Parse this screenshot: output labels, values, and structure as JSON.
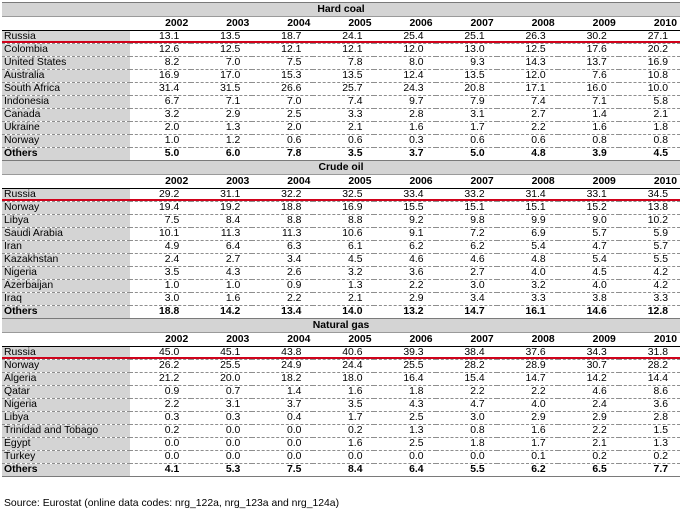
{
  "years": [
    "2002",
    "2003",
    "2004",
    "2005",
    "2006",
    "2007",
    "2008",
    "2009",
    "2010"
  ],
  "sections": [
    {
      "title": "Hard coal",
      "rows": [
        {
          "country": "Russia",
          "values": [
            "13.1",
            "13.5",
            "18.7",
            "24.1",
            "25.4",
            "25.1",
            "26.3",
            "30.2",
            "27.1"
          ]
        },
        {
          "country": "Colombia",
          "values": [
            "12.6",
            "12.5",
            "12.1",
            "12.1",
            "12.0",
            "13.0",
            "12.5",
            "17.6",
            "20.2"
          ]
        },
        {
          "country": "United States",
          "values": [
            "8.2",
            "7.0",
            "7.5",
            "7.8",
            "8.0",
            "9.3",
            "14.3",
            "13.7",
            "16.9"
          ]
        },
        {
          "country": "Australia",
          "values": [
            "16.9",
            "17.0",
            "15.3",
            "13.5",
            "12.4",
            "13.5",
            "12.0",
            "7.6",
            "10.8"
          ]
        },
        {
          "country": "South Africa",
          "values": [
            "31.4",
            "31.5",
            "26.6",
            "25.7",
            "24.3",
            "20.8",
            "17.1",
            "16.0",
            "10.0"
          ]
        },
        {
          "country": "Indonesia",
          "values": [
            "6.7",
            "7.1",
            "7.0",
            "7.4",
            "9.7",
            "7.9",
            "7.4",
            "7.1",
            "5.8"
          ]
        },
        {
          "country": "Canada",
          "values": [
            "3.2",
            "2.9",
            "2.5",
            "3.3",
            "2.8",
            "3.1",
            "2.7",
            "1.4",
            "2.1"
          ]
        },
        {
          "country": "Ukraine",
          "values": [
            "2.0",
            "1.3",
            "2.0",
            "2.1",
            "1.6",
            "1.7",
            "2.2",
            "1.6",
            "1.8"
          ]
        },
        {
          "country": "Norway",
          "values": [
            "1.0",
            "1.2",
            "0.6",
            "0.6",
            "0.3",
            "0.6",
            "0.6",
            "0.8",
            "0.8"
          ]
        },
        {
          "country": "Others",
          "values": [
            "5.0",
            "6.0",
            "7.8",
            "3.5",
            "3.7",
            "5.0",
            "4.8",
            "3.9",
            "4.5"
          ]
        }
      ]
    },
    {
      "title": "Crude oil",
      "rows": [
        {
          "country": "Russia",
          "values": [
            "29.2",
            "31.1",
            "32.2",
            "32.5",
            "33.4",
            "33.2",
            "31.4",
            "33.1",
            "34.5"
          ]
        },
        {
          "country": "Norway",
          "values": [
            "19.4",
            "19.2",
            "18.8",
            "16.9",
            "15.5",
            "15.1",
            "15.1",
            "15.2",
            "13.8"
          ]
        },
        {
          "country": "Libya",
          "values": [
            "7.5",
            "8.4",
            "8.8",
            "8.8",
            "9.2",
            "9.8",
            "9.9",
            "9.0",
            "10.2"
          ]
        },
        {
          "country": "Saudi Arabia",
          "values": [
            "10.1",
            "11.3",
            "11.3",
            "10.6",
            "9.1",
            "7.2",
            "6.9",
            "5.7",
            "5.9"
          ]
        },
        {
          "country": "Iran",
          "values": [
            "4.9",
            "6.4",
            "6.3",
            "6.1",
            "6.2",
            "6.2",
            "5.4",
            "4.7",
            "5.7"
          ]
        },
        {
          "country": "Kazakhstan",
          "values": [
            "2.4",
            "2.7",
            "3.4",
            "4.5",
            "4.6",
            "4.6",
            "4.8",
            "5.4",
            "5.5"
          ]
        },
        {
          "country": "Nigeria",
          "values": [
            "3.5",
            "4.3",
            "2.6",
            "3.2",
            "3.6",
            "2.7",
            "4.0",
            "4.5",
            "4.2"
          ]
        },
        {
          "country": "Azerbaijan",
          "values": [
            "1.0",
            "1.0",
            "0.9",
            "1.3",
            "2.2",
            "3.0",
            "3.2",
            "4.0",
            "4.2"
          ]
        },
        {
          "country": "Iraq",
          "values": [
            "3.0",
            "1.6",
            "2.2",
            "2.1",
            "2.9",
            "3.4",
            "3.3",
            "3.8",
            "3.3"
          ]
        },
        {
          "country": "Others",
          "values": [
            "18.8",
            "14.2",
            "13.4",
            "14.0",
            "13.2",
            "14.7",
            "16.1",
            "14.6",
            "12.8"
          ]
        }
      ]
    },
    {
      "title": "Natural gas",
      "rows": [
        {
          "country": "Russia",
          "values": [
            "45.0",
            "45.1",
            "43.8",
            "40.6",
            "39.3",
            "38.4",
            "37.6",
            "34.3",
            "31.8"
          ]
        },
        {
          "country": "Norway",
          "values": [
            "26.2",
            "25.5",
            "24.9",
            "24.4",
            "25.5",
            "28.2",
            "28.9",
            "30.7",
            "28.2"
          ]
        },
        {
          "country": "Algeria",
          "values": [
            "21.2",
            "20.0",
            "18.2",
            "18.0",
            "16.4",
            "15.4",
            "14.7",
            "14.2",
            "14.4"
          ]
        },
        {
          "country": "Qatar",
          "values": [
            "0.9",
            "0.7",
            "1.4",
            "1.6",
            "1.8",
            "2.2",
            "2.2",
            "4.6",
            "8.6"
          ]
        },
        {
          "country": "Nigeria",
          "values": [
            "2.2",
            "3.1",
            "3.7",
            "3.5",
            "4.3",
            "4.7",
            "4.0",
            "2.4",
            "3.6"
          ]
        },
        {
          "country": "Libya",
          "values": [
            "0.3",
            "0.3",
            "0.4",
            "1.7",
            "2.5",
            "3.0",
            "2.9",
            "2.9",
            "2.8"
          ]
        },
        {
          "country": "Trinidad and Tobago",
          "values": [
            "0.2",
            "0.0",
            "0.0",
            "0.2",
            "1.3",
            "0.8",
            "1.6",
            "2.2",
            "1.5"
          ]
        },
        {
          "country": "Egypt",
          "values": [
            "0.0",
            "0.0",
            "0.0",
            "1.6",
            "2.5",
            "1.8",
            "1.7",
            "2.1",
            "1.3"
          ]
        },
        {
          "country": "Turkey",
          "values": [
            "0.0",
            "0.0",
            "0.0",
            "0.0",
            "0.0",
            "0.0",
            "0.1",
            "0.2",
            "0.2"
          ]
        },
        {
          "country": "Others",
          "values": [
            "4.1",
            "5.3",
            "7.5",
            "8.4",
            "6.4",
            "5.5",
            "6.2",
            "6.5",
            "7.7"
          ]
        }
      ]
    }
  ],
  "source": "Source: Eurostat (online data codes: nrg_122a, nrg_123a and nrg_124a)"
}
